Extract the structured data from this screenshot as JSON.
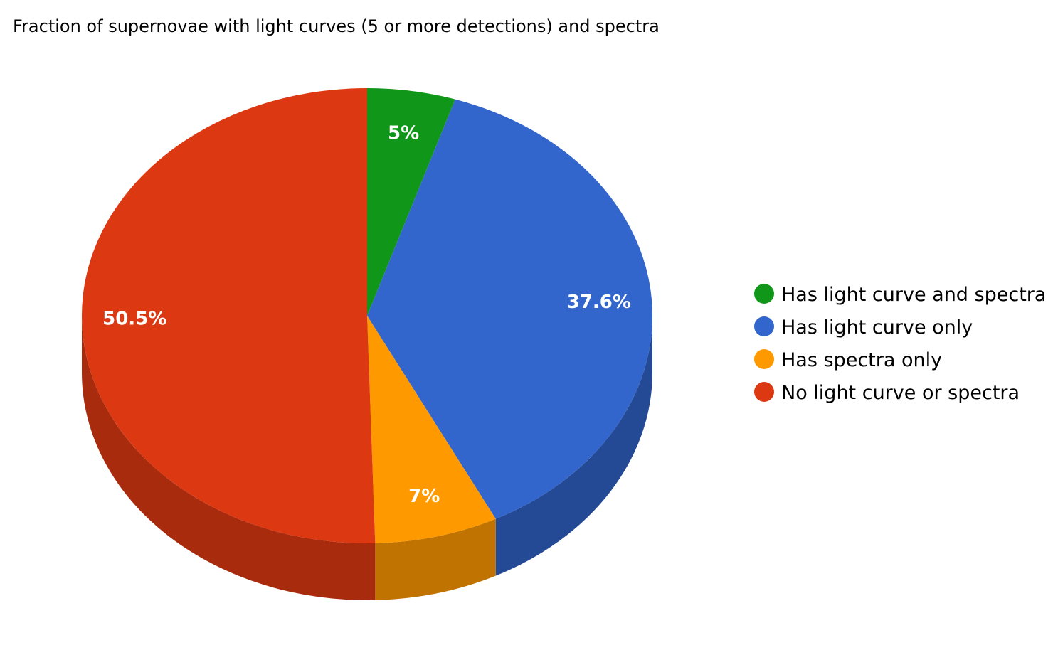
{
  "chart_data": {
    "type": "pie",
    "title": "Fraction of supernovae with light curves (5 or more detections) and spectra",
    "style": "3d",
    "legend_position": "right",
    "start_angle_deg": 0,
    "direction": "clockwise",
    "slices": [
      {
        "label": "Has light curve and spectra",
        "value": 5.0,
        "display": "5%",
        "color": "#109618",
        "side_color": "#0b6b11"
      },
      {
        "label": "Has light curve only",
        "value": 37.6,
        "display": "37.6%",
        "color": "#3366cc",
        "side_color": "#244a96"
      },
      {
        "label": "Has spectra only",
        "value": 7.0,
        "display": "7%",
        "color": "#ff9900",
        "side_color": "#c07300"
      },
      {
        "label": "No light curve or spectra",
        "value": 50.5,
        "display": "50.5%",
        "color": "#dc3912",
        "side_color": "#a82b0d"
      }
    ]
  }
}
